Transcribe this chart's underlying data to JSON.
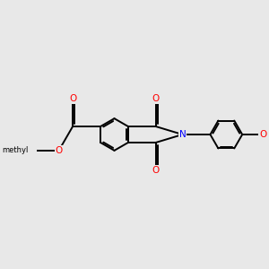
{
  "background_color": "#e8e8e8",
  "bond_color": "#000000",
  "N_color": "#0000ff",
  "O_color": "#ff0000",
  "bond_width": 1.4,
  "dbo": 0.06,
  "figsize": [
    3.0,
    3.0
  ],
  "dpi": 100,
  "xlim": [
    -2.8,
    5.2
  ],
  "ylim": [
    -2.8,
    2.8
  ]
}
